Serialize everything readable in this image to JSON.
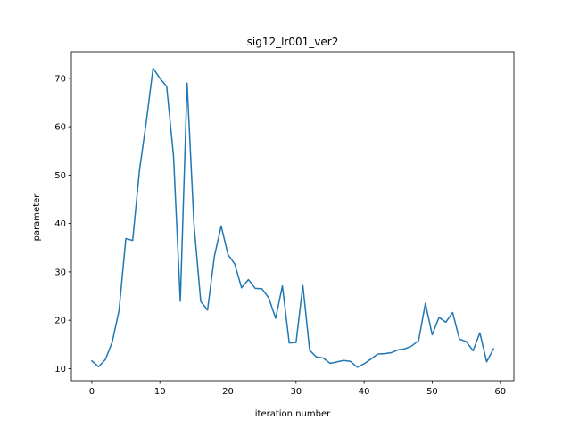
{
  "chart_data": {
    "type": "line",
    "title": "sig12_lr001_ver2",
    "xlabel": "iteration number",
    "ylabel": "parameter",
    "xlim": [
      -3,
      62
    ],
    "ylim": [
      7.5,
      75.5
    ],
    "xticks": [
      0,
      10,
      20,
      30,
      40,
      50,
      60
    ],
    "yticks": [
      10,
      20,
      30,
      40,
      50,
      60,
      70
    ],
    "grid": false,
    "series": [
      {
        "color": "#1f77b4",
        "x": [
          0,
          1,
          2,
          3,
          4,
          5,
          6,
          7,
          8,
          9,
          10,
          11,
          12,
          13,
          14,
          15,
          16,
          17,
          18,
          19,
          20,
          21,
          22,
          23,
          24,
          25,
          26,
          27,
          28,
          29,
          30,
          31,
          32,
          33,
          34,
          35,
          36,
          37,
          38,
          39,
          40,
          41,
          42,
          43,
          44,
          45,
          46,
          47,
          48,
          49,
          50,
          51,
          52,
          53,
          54,
          55,
          56,
          57,
          58,
          59
        ],
        "y": [
          11.6,
          10.4,
          11.9,
          15.5,
          22.0,
          36.9,
          36.5,
          51.0,
          61.0,
          72.1,
          70.0,
          68.3,
          54.0,
          23.9,
          69.0,
          40.0,
          23.9,
          22.1,
          33.2,
          39.5,
          33.6,
          31.6,
          26.7,
          28.4,
          26.6,
          26.5,
          24.6,
          20.4,
          27.1,
          15.3,
          15.4,
          27.2,
          13.8,
          12.4,
          12.2,
          11.1,
          11.4,
          11.7,
          11.5,
          10.3,
          11.0,
          12.0,
          13.0,
          13.1,
          13.3,
          13.9,
          14.1,
          14.7,
          15.8,
          23.5,
          17.0,
          20.6,
          19.6,
          21.6,
          16.1,
          15.6,
          13.7,
          17.4,
          11.4,
          14.1
        ]
      }
    ]
  }
}
